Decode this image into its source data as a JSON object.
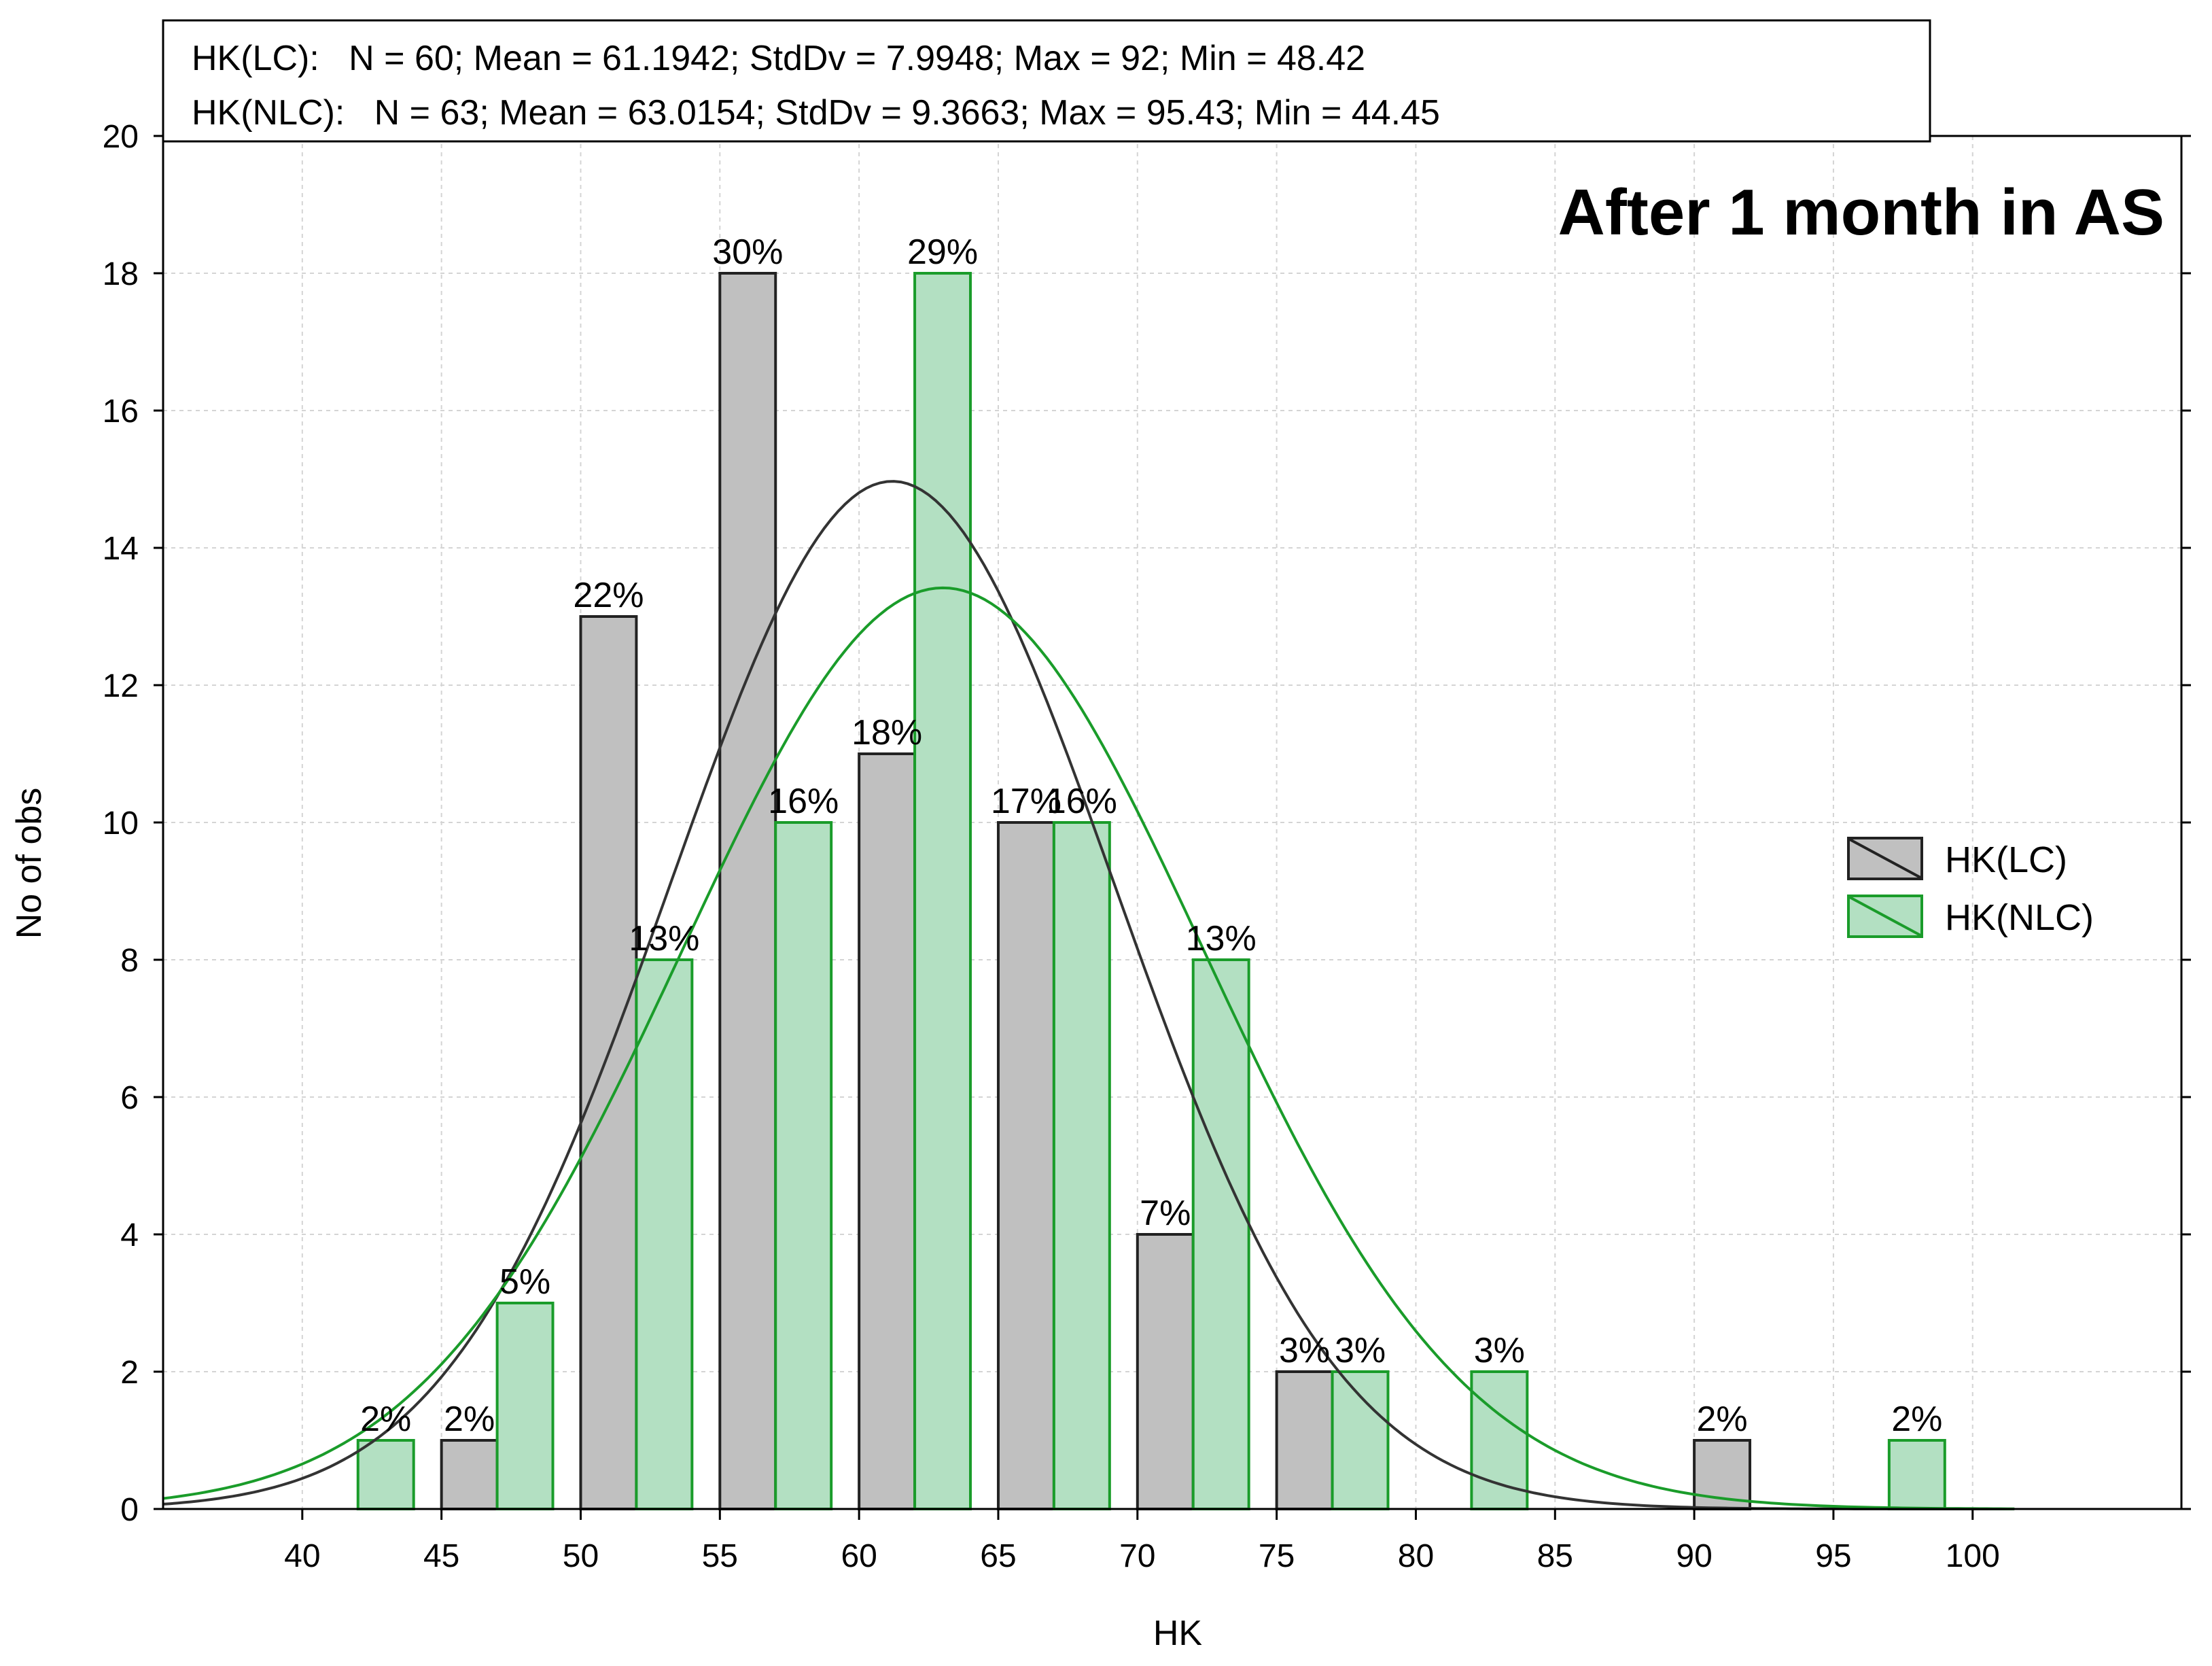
{
  "chart_data": {
    "type": "bar",
    "title": "After 1 month in AS",
    "xlabel": "HK",
    "ylabel": "No of obs",
    "xlim": [
      35,
      107.5
    ],
    "ylim": [
      0,
      20
    ],
    "x_ticks": [
      40,
      45,
      50,
      55,
      60,
      65,
      70,
      75,
      80,
      85,
      90,
      95,
      100
    ],
    "y_ticks": [
      0,
      2,
      4,
      6,
      8,
      10,
      12,
      14,
      16,
      18,
      20
    ],
    "grid": true,
    "stats": [
      "HK(LC):   N = 60; Mean = 61.1942; StdDv = 7.9948; Max = 92; Min = 48.42",
      "HK(NLC):   N = 63; Mean = 63.0154; StdDv = 9.3663; Max = 95.43; Min = 44.45"
    ],
    "legend_position": "right",
    "series": [
      {
        "name": "HK(LC)",
        "fill": "#c0c0c0",
        "stroke": "#222222",
        "curve_color": "#333333",
        "N": 60,
        "mean": 61.1942,
        "stddev": 7.9948,
        "bars": [
          {
            "x0": 45,
            "x1": 47,
            "value": 1,
            "label": "2%"
          },
          {
            "x0": 50,
            "x1": 52,
            "value": 13,
            "label": "22%"
          },
          {
            "x0": 55,
            "x1": 57,
            "value": 18,
            "label": "30%"
          },
          {
            "x0": 60,
            "x1": 62,
            "value": 11,
            "label": "18%"
          },
          {
            "x0": 65,
            "x1": 67,
            "value": 10,
            "label": "17%"
          },
          {
            "x0": 70,
            "x1": 72,
            "value": 4,
            "label": "7%"
          },
          {
            "x0": 75,
            "x1": 77,
            "value": 2,
            "label": "3%"
          },
          {
            "x0": 90,
            "x1": 92,
            "value": 1,
            "label": "2%"
          }
        ]
      },
      {
        "name": "HK(NLC)",
        "fill": "#b3e0c2",
        "stroke": "#1a9c2a",
        "curve_color": "#1a9c2a",
        "N": 63,
        "mean": 63.0154,
        "stddev": 9.3663,
        "bars": [
          {
            "x0": 42,
            "x1": 44,
            "value": 1,
            "label": "2%"
          },
          {
            "x0": 47,
            "x1": 49,
            "value": 3,
            "label": "5%"
          },
          {
            "x0": 52,
            "x1": 54,
            "value": 8,
            "label": "13%"
          },
          {
            "x0": 57,
            "x1": 59,
            "value": 10,
            "label": "16%"
          },
          {
            "x0": 62,
            "x1": 64,
            "value": 18,
            "label": "29%"
          },
          {
            "x0": 67,
            "x1": 69,
            "value": 10,
            "label": "16%"
          },
          {
            "x0": 72,
            "x1": 74,
            "value": 8,
            "label": "13%"
          },
          {
            "x0": 77,
            "x1": 79,
            "value": 2,
            "label": "3%"
          },
          {
            "x0": 82,
            "x1": 84,
            "value": 2,
            "label": "3%"
          },
          {
            "x0": 97,
            "x1": 99,
            "value": 1,
            "label": "2%"
          }
        ]
      }
    ]
  }
}
